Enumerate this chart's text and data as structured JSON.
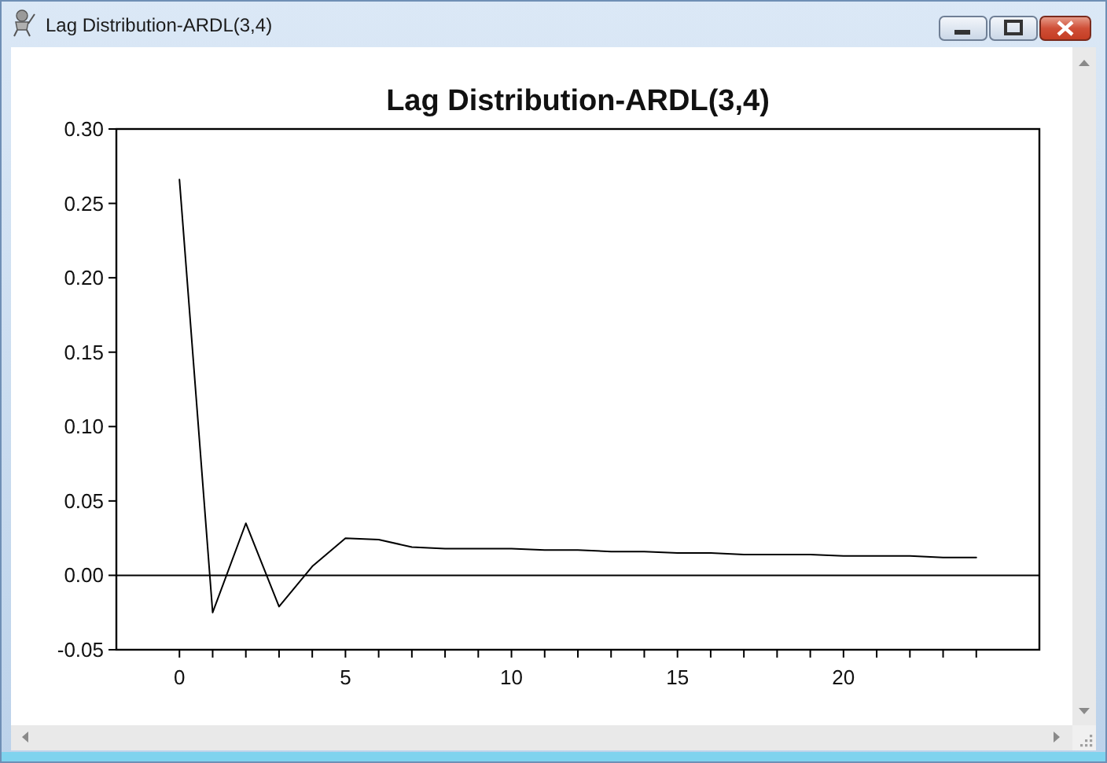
{
  "chart_data": {
    "type": "line",
    "title": "Lag Distribution-ARDL(3,4)",
    "annotations": [
      "Lag Distribution-ARDL(3,4)"
    ],
    "x": [
      0,
      1,
      2,
      3,
      4,
      5,
      6,
      7,
      8,
      9,
      10,
      11,
      12,
      13,
      14,
      15,
      16,
      17,
      18,
      19,
      20,
      21,
      22,
      23,
      24
    ],
    "series": [
      {
        "color": "#000000",
        "values": [
          0.266,
          -0.025,
          0.035,
          -0.021,
          0.006,
          0.025,
          0.024,
          0.019,
          0.018,
          0.018,
          0.018,
          0.017,
          0.017,
          0.016,
          0.016,
          0.015,
          0.015,
          0.014,
          0.014,
          0.014,
          0.013,
          0.013,
          0.013,
          0.012,
          0.012
        ]
      }
    ],
    "xlim": [
      -1.9,
      25.9
    ],
    "xticks": [
      0,
      {
        "value": 1,
        "label": null
      },
      {
        "value": 2,
        "label": null
      },
      {
        "value": 3,
        "label": null
      },
      {
        "value": 4,
        "label": null
      },
      5,
      {
        "value": 6,
        "label": null
      },
      {
        "value": 7,
        "label": null
      },
      {
        "value": 8,
        "label": null
      },
      {
        "value": 9,
        "label": null
      },
      10,
      {
        "value": 11,
        "label": null
      },
      {
        "value": 12,
        "label": null
      },
      {
        "value": 13,
        "label": null
      },
      {
        "value": 14,
        "label": null
      },
      15,
      {
        "value": 16,
        "label": null
      },
      {
        "value": 17,
        "label": null
      },
      {
        "value": 18,
        "label": null
      },
      {
        "value": 19,
        "label": null
      },
      20,
      {
        "value": 21,
        "label": null
      },
      {
        "value": 22,
        "label": null
      },
      {
        "value": 23,
        "label": null
      },
      {
        "value": 24,
        "label": null
      }
    ],
    "ylim": [
      -0.05,
      0.3
    ],
    "yticks": [
      -0.05,
      {
        "value": 0,
        "label": "0.00"
      },
      0.05,
      {
        "value": 0.1,
        "label": "0.10"
      },
      0.15,
      {
        "value": 0.2,
        "label": "0.20"
      },
      0.25,
      {
        "value": 0.3,
        "label": "0.30"
      }
    ],
    "ref_lines": [
      {
        "axis": "y",
        "value": 0,
        "color": "#000000"
      }
    ]
  }
}
